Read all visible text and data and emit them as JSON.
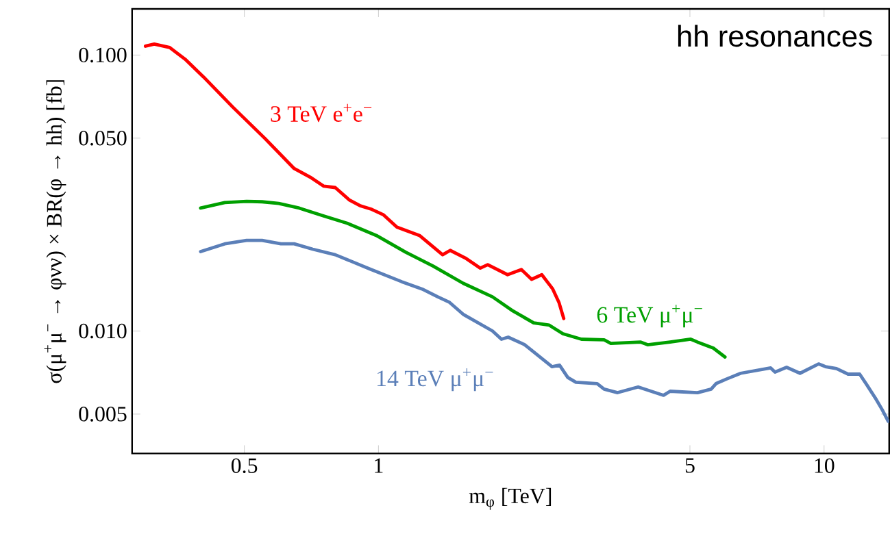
{
  "chart_data": {
    "type": "line",
    "title": "hh resonances",
    "xlabel": "m$_{φ}$  [TeV]",
    "ylabel": "σ(μ$^{+}$μ$^{−}$ → φνν) × BR(φ → hh)  [fb]",
    "log": "xy",
    "xlim": [
      0.28,
      14
    ],
    "ylim": [
      0.0036,
      0.147
    ],
    "xticks": [
      0.5,
      1,
      5,
      10
    ],
    "yticks": [
      0.005,
      {
        "value": 0.01,
        "label": "0.010"
      },
      {
        "value": 0.05,
        "label": "0.050"
      },
      {
        "value": 0.1,
        "label": "0.100"
      }
    ],
    "series": [
      {
        "name": "3 TeV e$^{+}$e$^{−}$",
        "color": "#ff0000",
        "x": [
          0.3,
          0.314,
          0.34,
          0.368,
          0.405,
          0.471,
          0.556,
          0.647,
          0.703,
          0.754,
          0.8,
          0.859,
          0.912,
          0.966,
          1.025,
          1.1,
          1.236,
          1.393,
          1.449,
          1.566,
          1.693,
          1.759,
          1.949,
          2.093,
          2.206,
          2.326,
          2.461,
          2.541,
          2.605
        ],
        "values": [
          0.1077,
          0.1096,
          0.1065,
          0.0967,
          0.0833,
          0.0648,
          0.0499,
          0.0388,
          0.0361,
          0.0335,
          0.0331,
          0.0299,
          0.0284,
          0.0276,
          0.0264,
          0.0238,
          0.0222,
          0.0189,
          0.0196,
          0.0184,
          0.0169,
          0.0174,
          0.016,
          0.0167,
          0.0154,
          0.016,
          0.0142,
          0.0127,
          0.0111
        ]
      },
      {
        "name": "6 TeV μ$^{+}$μ$^{−}$",
        "color": "#00a000",
        "x": [
          0.399,
          0.452,
          0.506,
          0.548,
          0.597,
          0.664,
          0.754,
          0.85,
          0.989,
          1.151,
          1.326,
          1.549,
          1.803,
          1.991,
          2.23,
          2.417,
          2.594,
          2.855,
          3.209,
          3.322,
          3.878,
          4.018,
          4.514,
          5.02,
          5.2,
          5.645,
          5.993
        ],
        "values": [
          0.0279,
          0.0292,
          0.0295,
          0.0294,
          0.029,
          0.0279,
          0.0261,
          0.0246,
          0.0222,
          0.0193,
          0.0172,
          0.0149,
          0.0133,
          0.0119,
          0.0107,
          0.0105,
          0.00978,
          0.00934,
          0.00929,
          0.00902,
          0.00912,
          0.00892,
          0.00912,
          0.00934,
          0.00912,
          0.00867,
          0.00805
        ]
      },
      {
        "name": "14 TeV μ$^{+}$μ$^{−}$",
        "color": "#5b7fb8",
        "x": [
          0.399,
          0.452,
          0.506,
          0.548,
          0.604,
          0.647,
          0.712,
          0.8,
          0.955,
          1.127,
          1.253,
          1.359,
          1.444,
          1.549,
          1.803,
          1.888,
          1.955,
          2.129,
          2.452,
          2.549,
          2.66,
          2.774,
          3.096,
          3.209,
          3.441,
          3.826,
          4.364,
          4.514,
          5.2,
          5.58,
          5.723,
          6.055,
          6.501,
          7.59,
          7.762,
          8.24,
          8.831,
          9.72,
          10.07,
          10.66,
          11.32,
          12.02,
          12.45,
          13.03,
          13.5,
          13.93
        ],
        "values": [
          0.0194,
          0.0207,
          0.0213,
          0.0213,
          0.0207,
          0.0207,
          0.0198,
          0.0189,
          0.0168,
          0.0151,
          0.0142,
          0.0133,
          0.0127,
          0.0115,
          0.01,
          0.00934,
          0.0095,
          0.00892,
          0.00743,
          0.00752,
          0.00679,
          0.00652,
          0.00645,
          0.00616,
          0.00598,
          0.00627,
          0.00585,
          0.00605,
          0.00598,
          0.00616,
          0.00645,
          0.00671,
          0.00703,
          0.00735,
          0.0071,
          0.00739,
          0.00703,
          0.0076,
          0.00743,
          0.00731,
          0.00698,
          0.00698,
          0.00641,
          0.00572,
          0.00519,
          0.00471
        ]
      }
    ]
  }
}
